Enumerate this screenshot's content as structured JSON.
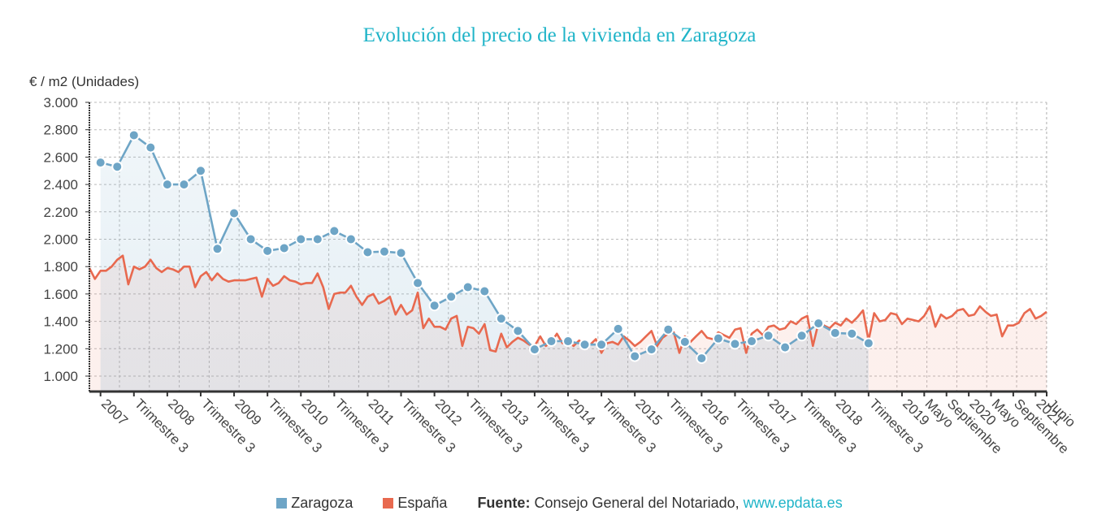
{
  "chart_data": {
    "type": "line",
    "title": "Evolución del precio de la vivienda en Zaragoza",
    "ylabel": "€ / m2 (Unidades)",
    "xlabel": "",
    "ylim": [
      900,
      3000
    ],
    "yticks": [
      "3.000",
      "2.800",
      "2.600",
      "2.400",
      "2.200",
      "2.000",
      "1.800",
      "1.600",
      "1.400",
      "1.200",
      "1.000"
    ],
    "ytick_values": [
      3000,
      2800,
      2600,
      2400,
      2200,
      2000,
      1800,
      1600,
      1400,
      1200,
      1000
    ],
    "grid": true,
    "x_slots": 172,
    "x_tick_labels": [
      {
        "i": 2,
        "label": "2007"
      },
      {
        "i": 8,
        "label": "Trimestre 3"
      },
      {
        "i": 14,
        "label": "2008"
      },
      {
        "i": 20,
        "label": "Trimestre 3"
      },
      {
        "i": 26,
        "label": "2009"
      },
      {
        "i": 32,
        "label": "Trimestre 3"
      },
      {
        "i": 38,
        "label": "2010"
      },
      {
        "i": 44,
        "label": "Trimestre 3"
      },
      {
        "i": 50,
        "label": "2011"
      },
      {
        "i": 56,
        "label": "Trimestre 3"
      },
      {
        "i": 62,
        "label": "2012"
      },
      {
        "i": 68,
        "label": "Trimestre 3"
      },
      {
        "i": 74,
        "label": "2013"
      },
      {
        "i": 80,
        "label": "Trimestre 3"
      },
      {
        "i": 86,
        "label": "2014"
      },
      {
        "i": 92,
        "label": "Trimestre 3"
      },
      {
        "i": 98,
        "label": "2015"
      },
      {
        "i": 104,
        "label": "Trimestre 3"
      },
      {
        "i": 110,
        "label": "2016"
      },
      {
        "i": 116,
        "label": "Trimestre 3"
      },
      {
        "i": 122,
        "label": "2017"
      },
      {
        "i": 128,
        "label": "Trimestre 3"
      },
      {
        "i": 134,
        "label": "2018"
      },
      {
        "i": 140,
        "label": "Trimestre 3"
      },
      {
        "i": 146,
        "label": "2019"
      },
      {
        "i": 150,
        "label": "Mayo"
      },
      {
        "i": 154,
        "label": "Septiembre"
      },
      {
        "i": 158,
        "label": "2020"
      },
      {
        "i": 162,
        "label": "Mayo"
      },
      {
        "i": 166,
        "label": "Septiembre"
      },
      {
        "i": 170,
        "label": "2021"
      },
      {
        "i": 172,
        "label": "Junio"
      }
    ],
    "series": [
      {
        "name": "Zaragoza",
        "color": "#6ea5c6",
        "start_index": 2,
        "step": 3,
        "values": [
          2560,
          2530,
          2760,
          2670,
          2400,
          2400,
          2500,
          1930,
          2190,
          2000,
          1915,
          1935,
          2000,
          2000,
          2060,
          2000,
          1905,
          1910,
          1900,
          1680,
          1515,
          1580,
          1650,
          1620,
          1420,
          1330,
          1195,
          1255,
          1255,
          1230,
          1230,
          1345,
          1145,
          1195,
          1340,
          1250,
          1130,
          1275,
          1235,
          1255,
          1295,
          1210,
          1295,
          1385,
          1315,
          1310,
          1240
        ]
      },
      {
        "name": "España",
        "color": "#e8694f",
        "start_index": 0,
        "step": 1,
        "values": [
          1790,
          1710,
          1770,
          1770,
          1800,
          1850,
          1880,
          1670,
          1800,
          1780,
          1800,
          1850,
          1790,
          1760,
          1790,
          1780,
          1760,
          1800,
          1800,
          1650,
          1730,
          1760,
          1700,
          1750,
          1710,
          1690,
          1700,
          1700,
          1700,
          1710,
          1720,
          1580,
          1710,
          1660,
          1680,
          1730,
          1700,
          1690,
          1670,
          1680,
          1680,
          1750,
          1650,
          1490,
          1600,
          1610,
          1610,
          1660,
          1580,
          1520,
          1580,
          1600,
          1530,
          1550,
          1580,
          1450,
          1520,
          1450,
          1480,
          1610,
          1350,
          1420,
          1360,
          1360,
          1340,
          1420,
          1440,
          1220,
          1360,
          1350,
          1310,
          1380,
          1190,
          1180,
          1310,
          1210,
          1250,
          1280,
          1260,
          1230,
          1220,
          1290,
          1220,
          1250,
          1310,
          1240,
          1260,
          1220,
          1260,
          1230,
          1230,
          1270,
          1170,
          1240,
          1250,
          1230,
          1290,
          1260,
          1220,
          1250,
          1290,
          1330,
          1220,
          1280,
          1310,
          1320,
          1170,
          1290,
          1250,
          1290,
          1330,
          1280,
          1270,
          1320,
          1300,
          1280,
          1340,
          1350,
          1170,
          1310,
          1340,
          1300,
          1360,
          1370,
          1340,
          1350,
          1400,
          1380,
          1420,
          1440,
          1220,
          1390,
          1370,
          1350,
          1390,
          1370,
          1420,
          1390,
          1430,
          1480,
          1260,
          1460,
          1400,
          1410,
          1460,
          1450,
          1380,
          1420,
          1410,
          1400,
          1440,
          1510,
          1360,
          1450,
          1420,
          1440,
          1480,
          1490,
          1440,
          1450,
          1510,
          1470,
          1440,
          1450,
          1290,
          1370,
          1370,
          1390,
          1460,
          1490,
          1420,
          1440,
          1470
        ]
      }
    ]
  },
  "legend": {
    "items": [
      {
        "label": "Zaragoza",
        "color": "#6ea5c6"
      },
      {
        "label": "España",
        "color": "#e8694f"
      }
    ],
    "source_label": "Fuente:",
    "source_text": "Consejo General del Notariado,",
    "source_link": "www.epdata.es"
  }
}
